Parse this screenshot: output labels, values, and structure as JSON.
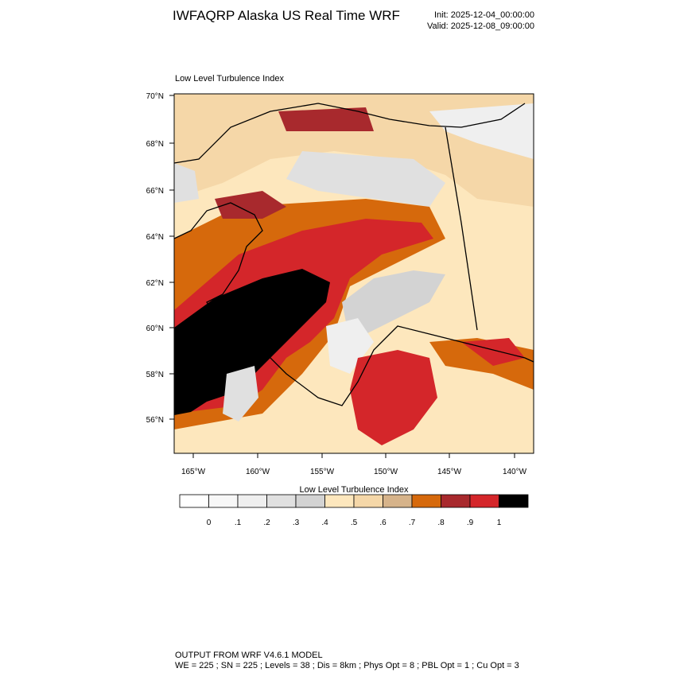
{
  "header": {
    "title": "IWFAQRP Alaska US Real Time WRF",
    "init": "Init: 2025-12-04_00:00:00",
    "valid": "Valid: 2025-12-08_09:00:00"
  },
  "map": {
    "title": "Low Level Turbulence Index",
    "lat_labels": [
      "70°N",
      "68°N",
      "66°N",
      "64°N",
      "62°N",
      "60°N",
      "58°N",
      "56°N"
    ],
    "lon_labels": [
      "165°W",
      "160°W",
      "155°W",
      "150°W",
      "145°W",
      "140°W"
    ]
  },
  "colorbar": {
    "title": "Low Level Turbulence Index",
    "labels": [
      "0",
      ".1",
      ".2",
      ".3",
      ".4",
      ".5",
      ".6",
      ".7",
      ".8",
      ".9",
      "1"
    ],
    "colors": [
      "#ffffff",
      "#f7f7f7",
      "#efefef",
      "#e0e0e0",
      "#d3d3d3",
      "#fde7bd",
      "#f5d7a8",
      "#d6b38a",
      "#d6690c",
      "#a8292d",
      "#d4262a",
      "#000000"
    ]
  },
  "footer": {
    "line1": "OUTPUT FROM WRF V4.6.1 MODEL",
    "line2": "WE = 225 ; SN = 225 ; Levels = 38 ; Dis = 8km ; Phys Opt = 8 ; PBL Opt = 1 ; Cu Opt = 3"
  }
}
